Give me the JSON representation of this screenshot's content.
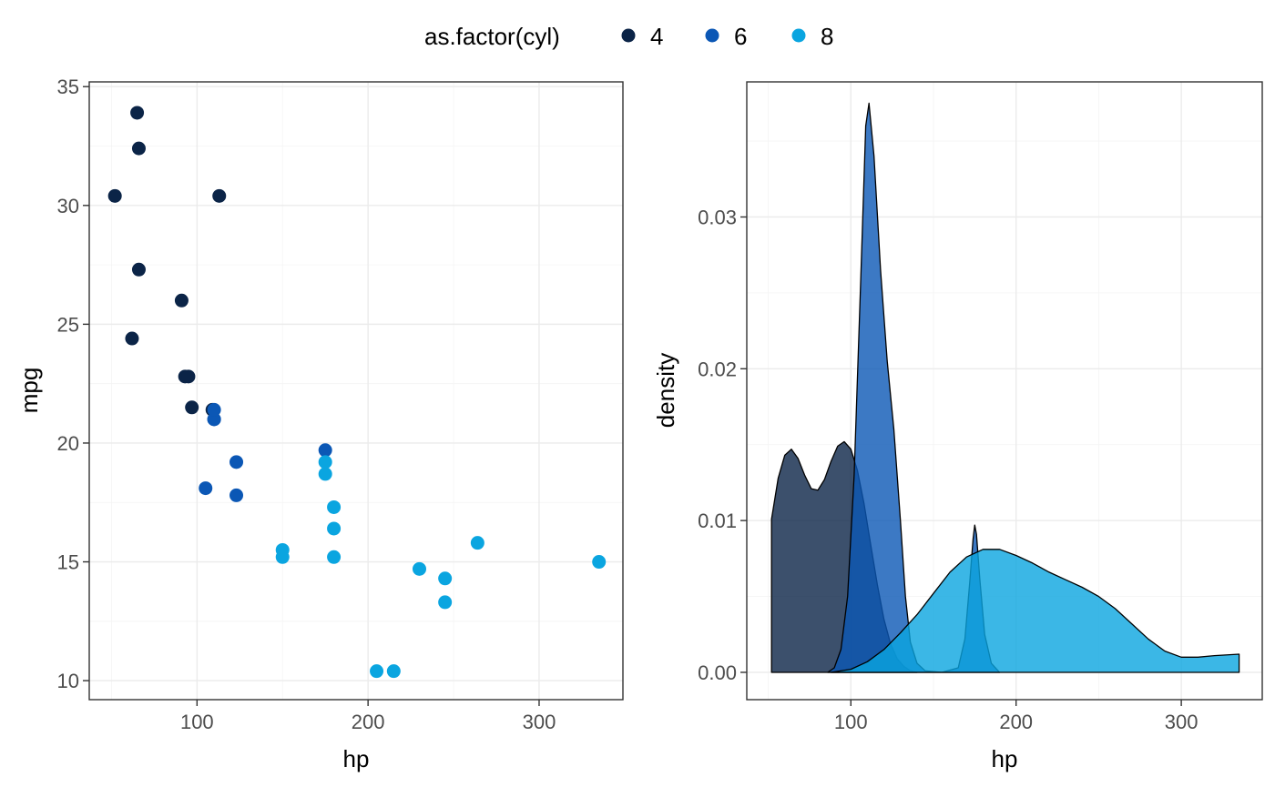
{
  "legend": {
    "title": "as.factor(cyl)",
    "position": "top",
    "entries": [
      {
        "label": "4",
        "color": "#0b2447"
      },
      {
        "label": "6",
        "color": "#0b57b5"
      },
      {
        "label": "8",
        "color": "#0aa5e0"
      }
    ]
  },
  "chart_data": [
    {
      "type": "scatter",
      "xlabel": "hp",
      "ylabel": "mpg",
      "xlim": [
        37,
        349
      ],
      "ylim": [
        9.2,
        35.2
      ],
      "xticks": [
        100,
        200,
        300
      ],
      "yticks": [
        10,
        15,
        20,
        25,
        30,
        35
      ],
      "grid": true,
      "series": [
        {
          "name": "4",
          "color": "#0b2447",
          "points": [
            [
              93,
              22.8
            ],
            [
              62,
              24.4
            ],
            [
              95,
              22.8
            ],
            [
              66,
              32.4
            ],
            [
              52,
              30.4
            ],
            [
              65,
              33.9
            ],
            [
              97,
              21.5
            ],
            [
              66,
              27.3
            ],
            [
              91,
              26.0
            ],
            [
              113,
              30.4
            ],
            [
              109,
              21.4
            ]
          ]
        },
        {
          "name": "6",
          "color": "#0b57b5",
          "points": [
            [
              110,
              21.0
            ],
            [
              110,
              21.0
            ],
            [
              110,
              21.4
            ],
            [
              105,
              18.1
            ],
            [
              123,
              19.2
            ],
            [
              123,
              17.8
            ],
            [
              175,
              19.7
            ]
          ]
        },
        {
          "name": "8",
          "color": "#0aa5e0",
          "points": [
            [
              175,
              18.7
            ],
            [
              245,
              14.3
            ],
            [
              180,
              16.4
            ],
            [
              180,
              17.3
            ],
            [
              180,
              15.2
            ],
            [
              205,
              10.4
            ],
            [
              215,
              10.4
            ],
            [
              230,
              14.7
            ],
            [
              150,
              15.5
            ],
            [
              150,
              15.2
            ],
            [
              245,
              13.3
            ],
            [
              175,
              19.2
            ],
            [
              264,
              15.8
            ],
            [
              335,
              15.0
            ]
          ]
        }
      ]
    },
    {
      "type": "area",
      "xlabel": "hp",
      "ylabel": "density",
      "xlim": [
        37,
        349
      ],
      "ylim": [
        -0.0018,
        0.0389
      ],
      "xticks": [
        100,
        200,
        300
      ],
      "yticks": [
        0.0,
        0.01,
        0.02,
        0.03
      ],
      "ytick_labels": [
        "0.00",
        "0.01",
        "0.02",
        "0.03"
      ],
      "grid": true,
      "series": [
        {
          "name": "4",
          "color": "#0b2447",
          "points": [
            [
              52,
              0.0
            ],
            [
              52,
              0.0101
            ],
            [
              56,
              0.0128
            ],
            [
              60,
              0.0143
            ],
            [
              64,
              0.0147
            ],
            [
              68,
              0.0141
            ],
            [
              72,
              0.013
            ],
            [
              76,
              0.0121
            ],
            [
              80,
              0.012
            ],
            [
              84,
              0.0127
            ],
            [
              88,
              0.0139
            ],
            [
              92,
              0.0149
            ],
            [
              96,
              0.0152
            ],
            [
              100,
              0.0147
            ],
            [
              104,
              0.0133
            ],
            [
              108,
              0.0111
            ],
            [
              112,
              0.0084
            ],
            [
              116,
              0.0058
            ],
            [
              120,
              0.0035
            ],
            [
              124,
              0.0019
            ],
            [
              128,
              0.0009
            ],
            [
              132,
              0.0004
            ],
            [
              136,
              0.0001
            ],
            [
              140,
              0.0
            ]
          ]
        },
        {
          "name": "6",
          "color": "#0b57b5",
          "points": [
            [
              86,
              0.0
            ],
            [
              90,
              0.0003
            ],
            [
              94,
              0.0015
            ],
            [
              98,
              0.005
            ],
            [
              102,
              0.013
            ],
            [
              106,
              0.026
            ],
            [
              109,
              0.036
            ],
            [
              111,
              0.0375
            ],
            [
              114,
              0.034
            ],
            [
              118,
              0.0265
            ],
            [
              122,
              0.0205
            ],
            [
              126,
              0.016
            ],
            [
              130,
              0.01
            ],
            [
              133,
              0.005
            ],
            [
              136,
              0.002
            ],
            [
              140,
              0.0006
            ],
            [
              145,
              0.0001
            ],
            [
              155,
              0.0
            ],
            [
              165,
              0.0003
            ],
            [
              169,
              0.0022
            ],
            [
              172,
              0.006
            ],
            [
              174,
              0.0088
            ],
            [
              175,
              0.0097
            ],
            [
              176,
              0.0091
            ],
            [
              178,
              0.0062
            ],
            [
              181,
              0.0025
            ],
            [
              185,
              0.0006
            ],
            [
              190,
              0.0
            ]
          ]
        },
        {
          "name": "8",
          "color": "#0aa5e0",
          "points": [
            [
              88,
              0.0
            ],
            [
              100,
              0.0002
            ],
            [
              110,
              0.0007
            ],
            [
              120,
              0.0015
            ],
            [
              130,
              0.0026
            ],
            [
              140,
              0.0038
            ],
            [
              150,
              0.0052
            ],
            [
              160,
              0.0066
            ],
            [
              170,
              0.0076
            ],
            [
              180,
              0.0081
            ],
            [
              190,
              0.0081
            ],
            [
              200,
              0.0077
            ],
            [
              210,
              0.0072
            ],
            [
              220,
              0.0066
            ],
            [
              230,
              0.0061
            ],
            [
              240,
              0.0056
            ],
            [
              250,
              0.005
            ],
            [
              260,
              0.0042
            ],
            [
              270,
              0.0032
            ],
            [
              280,
              0.0022
            ],
            [
              290,
              0.0014
            ],
            [
              300,
              0.001
            ],
            [
              310,
              0.001
            ],
            [
              320,
              0.0011
            ],
            [
              335,
              0.0012
            ],
            [
              335,
              0.0
            ]
          ]
        }
      ]
    }
  ]
}
